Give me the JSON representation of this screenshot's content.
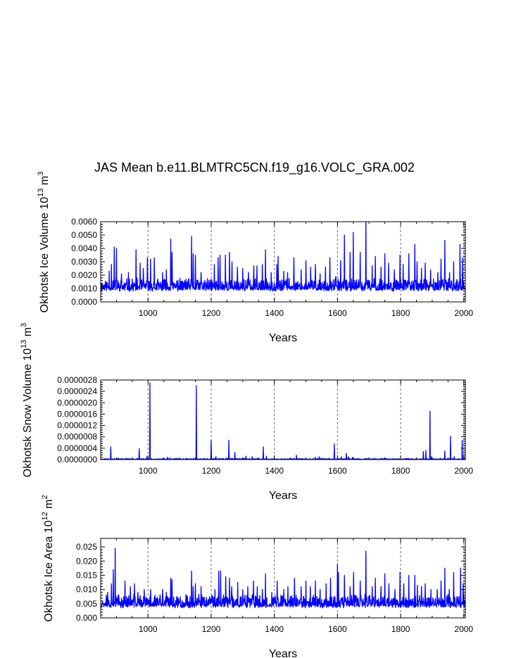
{
  "title": "JAS Mean b.e11.BLMTRC5CN.f19_g16.VOLC_GRA.002",
  "colors": {
    "series": "#0000ff",
    "axis": "#000000",
    "grid": "#666666"
  },
  "chart_data": [
    {
      "type": "line",
      "name": "ice-volume",
      "ylabel": "Okhotsk Ice Volume",
      "ylabel_unit": "10",
      "ylabel_exp": "13",
      "ylabel_tail": "m",
      "ylabel_tail_exp": "3",
      "xlabel": "Years",
      "xlim": [
        850,
        2005
      ],
      "ylim": [
        0,
        0.006
      ],
      "xticks": [
        1000,
        1200,
        1400,
        1600,
        1800,
        2000
      ],
      "xtick_labels": [
        "1000",
        "1200",
        "1400",
        "1600",
        "1800",
        "2000"
      ],
      "yticks": [
        0,
        0.001,
        0.002,
        0.003,
        0.004,
        0.005,
        0.006
      ],
      "ytick_labels": [
        "0.0000",
        "0.0010",
        "0.0020",
        "0.0030",
        "0.0040",
        "0.0050",
        "0.0060"
      ],
      "grid_x": [
        1000,
        1200,
        1400,
        1600,
        1800,
        2000
      ],
      "base": 0.0008,
      "noise": 0.0005,
      "seed": 11,
      "spikes": [
        [
          877,
          0.0023
        ],
        [
          884,
          0.0028
        ],
        [
          893,
          0.0041
        ],
        [
          900,
          0.004
        ],
        [
          916,
          0.0021
        ],
        [
          938,
          0.0022
        ],
        [
          962,
          0.0039
        ],
        [
          975,
          0.0029
        ],
        [
          985,
          0.0025
        ],
        [
          998,
          0.0033
        ],
        [
          1008,
          0.0032
        ],
        [
          1020,
          0.0033
        ],
        [
          1046,
          0.0022
        ],
        [
          1058,
          0.0024
        ],
        [
          1072,
          0.0047
        ],
        [
          1076,
          0.0037
        ],
        [
          1095,
          0.0016
        ],
        [
          1120,
          0.0017
        ],
        [
          1138,
          0.0049
        ],
        [
          1143,
          0.0036
        ],
        [
          1150,
          0.0035
        ],
        [
          1168,
          0.0022
        ],
        [
          1180,
          0.0016
        ],
        [
          1210,
          0.0028
        ],
        [
          1222,
          0.0033
        ],
        [
          1228,
          0.0035
        ],
        [
          1245,
          0.0035
        ],
        [
          1258,
          0.0037
        ],
        [
          1266,
          0.003
        ],
        [
          1283,
          0.0026
        ],
        [
          1300,
          0.0025
        ],
        [
          1318,
          0.0022
        ],
        [
          1335,
          0.0027
        ],
        [
          1345,
          0.0027
        ],
        [
          1362,
          0.0028
        ],
        [
          1372,
          0.0039
        ],
        [
          1390,
          0.0022
        ],
        [
          1408,
          0.0028
        ],
        [
          1412,
          0.0034
        ],
        [
          1430,
          0.0023
        ],
        [
          1442,
          0.0022
        ],
        [
          1462,
          0.0033
        ],
        [
          1485,
          0.0024
        ],
        [
          1500,
          0.0031
        ],
        [
          1515,
          0.0026
        ],
        [
          1530,
          0.0028
        ],
        [
          1545,
          0.0021
        ],
        [
          1562,
          0.0026
        ],
        [
          1576,
          0.0033
        ],
        [
          1595,
          0.0019
        ],
        [
          1610,
          0.0031
        ],
        [
          1622,
          0.005
        ],
        [
          1640,
          0.0037
        ],
        [
          1650,
          0.0052
        ],
        [
          1672,
          0.0037
        ],
        [
          1690,
          0.006
        ],
        [
          1710,
          0.0027
        ],
        [
          1720,
          0.0034
        ],
        [
          1738,
          0.0026
        ],
        [
          1750,
          0.0036
        ],
        [
          1762,
          0.0029
        ],
        [
          1780,
          0.0024
        ],
        [
          1798,
          0.0035
        ],
        [
          1808,
          0.0028
        ],
        [
          1826,
          0.0036
        ],
        [
          1845,
          0.0043
        ],
        [
          1852,
          0.003
        ],
        [
          1866,
          0.0025
        ],
        [
          1878,
          0.0029
        ],
        [
          1895,
          0.0024
        ],
        [
          1918,
          0.0022
        ],
        [
          1928,
          0.0032
        ],
        [
          1940,
          0.0046
        ],
        [
          1955,
          0.0022
        ],
        [
          1968,
          0.003
        ],
        [
          1988,
          0.0043
        ],
        [
          1996,
          0.0033
        ]
      ]
    },
    {
      "type": "line",
      "name": "snow-volume",
      "ylabel": "Okhotsk Snow Volume",
      "ylabel_unit": "10",
      "ylabel_exp": "13",
      "ylabel_tail": "m",
      "ylabel_tail_exp": "3",
      "xlabel": "Years",
      "xlim": [
        850,
        2005
      ],
      "ylim": [
        0,
        2.8e-06
      ],
      "xticks": [
        1000,
        1200,
        1400,
        1600,
        1800,
        2000
      ],
      "xtick_labels": [
        "1000",
        "1200",
        "1400",
        "1600",
        "1800",
        "2000"
      ],
      "yticks": [
        0,
        4e-07,
        8e-07,
        1.2e-06,
        1.6e-06,
        2e-06,
        2.4e-06,
        2.8e-06
      ],
      "ytick_labels": [
        "0.0000000",
        "0.0000004",
        "0.0000008",
        "0.0000012",
        "0.0000016",
        "0.0000020",
        "0.0000024",
        "0.0000028"
      ],
      "grid_x": [
        1000,
        1200,
        1400,
        1600,
        1800,
        2000
      ],
      "base": 0,
      "noise": 2e-08,
      "seed": 23,
      "spikes": [
        [
          882,
          4.5e-07
        ],
        [
          905,
          5e-08
        ],
        [
          930,
          4e-08
        ],
        [
          950,
          5e-08
        ],
        [
          972,
          3.8e-07
        ],
        [
          996,
          1e-07
        ],
        [
          1006,
          2.7e-06
        ],
        [
          1062,
          8e-08
        ],
        [
          1070,
          6e-08
        ],
        [
          1153,
          2.6e-06
        ],
        [
          1200,
          6.8e-07
        ],
        [
          1215,
          1e-07
        ],
        [
          1256,
          6.8e-07
        ],
        [
          1275,
          2.5e-07
        ],
        [
          1310,
          1.2e-07
        ],
        [
          1330,
          1e-07
        ],
        [
          1365,
          4.5e-07
        ],
        [
          1375,
          1.2e-07
        ],
        [
          1470,
          1.5e-07
        ],
        [
          1530,
          8e-08
        ],
        [
          1542,
          1e-07
        ],
        [
          1590,
          5.5e-07
        ],
        [
          1612,
          1e-07
        ],
        [
          1628,
          2.2e-07
        ],
        [
          1635,
          1e-07
        ],
        [
          1648,
          8e-08
        ],
        [
          1700,
          5e-08
        ],
        [
          1872,
          2.8e-07
        ],
        [
          1880,
          3.2e-07
        ],
        [
          1893,
          1.7e-06
        ],
        [
          1898,
          1e-07
        ],
        [
          1940,
          3e-07
        ],
        [
          1958,
          8.2e-07
        ],
        [
          1970,
          1e-07
        ],
        [
          1995,
          6.8e-07
        ]
      ]
    },
    {
      "type": "line",
      "name": "ice-area",
      "ylabel": "Okhotsk Ice Area",
      "ylabel_unit": "10",
      "ylabel_exp": "12",
      "ylabel_tail": "m",
      "ylabel_tail_exp": "2",
      "xlabel": "Years",
      "xlim": [
        850,
        2005
      ],
      "ylim": [
        0,
        0.028
      ],
      "xticks": [
        1000,
        1200,
        1400,
        1600,
        1800,
        2000
      ],
      "xtick_labels": [
        "1000",
        "1200",
        "1400",
        "1600",
        "1800",
        "2000"
      ],
      "yticks": [
        0,
        0.005,
        0.01,
        0.015,
        0.02,
        0.025
      ],
      "ytick_labels": [
        "0.000",
        "0.005",
        "0.010",
        "0.015",
        "0.020",
        "0.025"
      ],
      "grid_x": [
        1000,
        1200,
        1400,
        1600,
        1800,
        2000
      ],
      "base": 0.0035,
      "noise": 0.0025,
      "seed": 37,
      "spikes": [
        [
          868,
          0.008
        ],
        [
          872,
          0.009
        ],
        [
          884,
          0.012
        ],
        [
          890,
          0.017
        ],
        [
          896,
          0.0245
        ],
        [
          908,
          0.007
        ],
        [
          927,
          0.013
        ],
        [
          944,
          0.011
        ],
        [
          957,
          0.012
        ],
        [
          968,
          0.009
        ],
        [
          988,
          0.01
        ],
        [
          1008,
          0.01
        ],
        [
          1022,
          0.008
        ],
        [
          1046,
          0.01
        ],
        [
          1058,
          0.009
        ],
        [
          1072,
          0.014
        ],
        [
          1076,
          0.0135
        ],
        [
          1095,
          0.007
        ],
        [
          1120,
          0.008
        ],
        [
          1138,
          0.0165
        ],
        [
          1143,
          0.011
        ],
        [
          1150,
          0.012
        ],
        [
          1168,
          0.011
        ],
        [
          1212,
          0.01
        ],
        [
          1224,
          0.0165
        ],
        [
          1230,
          0.0165
        ],
        [
          1246,
          0.0145
        ],
        [
          1258,
          0.014
        ],
        [
          1265,
          0.011
        ],
        [
          1284,
          0.0125
        ],
        [
          1300,
          0.01
        ],
        [
          1316,
          0.011
        ],
        [
          1334,
          0.013
        ],
        [
          1346,
          0.011
        ],
        [
          1362,
          0.01
        ],
        [
          1372,
          0.0155
        ],
        [
          1392,
          0.009
        ],
        [
          1409,
          0.013
        ],
        [
          1430,
          0.01
        ],
        [
          1443,
          0.011
        ],
        [
          1464,
          0.014
        ],
        [
          1485,
          0.011
        ],
        [
          1500,
          0.013
        ],
        [
          1514,
          0.011
        ],
        [
          1530,
          0.013
        ],
        [
          1545,
          0.01
        ],
        [
          1564,
          0.012
        ],
        [
          1578,
          0.014
        ],
        [
          1600,
          0.019
        ],
        [
          1603,
          0.016
        ],
        [
          1622,
          0.015
        ],
        [
          1640,
          0.011
        ],
        [
          1651,
          0.016
        ],
        [
          1672,
          0.013
        ],
        [
          1690,
          0.0235
        ],
        [
          1710,
          0.011
        ],
        [
          1720,
          0.014
        ],
        [
          1738,
          0.011
        ],
        [
          1750,
          0.0155
        ],
        [
          1763,
          0.012
        ],
        [
          1782,
          0.01
        ],
        [
          1798,
          0.016
        ],
        [
          1810,
          0.012
        ],
        [
          1826,
          0.015
        ],
        [
          1845,
          0.015
        ],
        [
          1853,
          0.0115
        ],
        [
          1866,
          0.011
        ],
        [
          1878,
          0.012
        ],
        [
          1896,
          0.01
        ],
        [
          1916,
          0.01
        ],
        [
          1928,
          0.013
        ],
        [
          1940,
          0.0175
        ],
        [
          1954,
          0.01
        ],
        [
          1968,
          0.016
        ],
        [
          1990,
          0.0175
        ],
        [
          1998,
          0.012
        ]
      ]
    }
  ]
}
